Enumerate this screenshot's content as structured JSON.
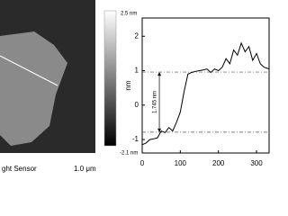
{
  "afm_image": {
    "sensor_label": "ght Sensor",
    "scale_bar": "1.0 μm",
    "colorbar": {
      "max_label": "2.5 nm",
      "min_label": "-2.1 nm"
    }
  },
  "chart_data": {
    "type": "line",
    "ylabel": "nm",
    "x": [
      0,
      10,
      20,
      30,
      40,
      50,
      60,
      70,
      80,
      90,
      100,
      110,
      120,
      130,
      140,
      150,
      160,
      170,
      180,
      190,
      200,
      210,
      220,
      230,
      240,
      250,
      260,
      270,
      280,
      290,
      300,
      310,
      320,
      333
    ],
    "series": [
      {
        "color": "#000000",
        "values": [
          -1.15,
          -1.1,
          -1.0,
          -0.98,
          -0.95,
          -0.75,
          -0.8,
          -0.65,
          -0.75,
          -0.5,
          -0.2,
          0.4,
          0.9,
          0.95,
          0.98,
          1.0,
          1.02,
          1.05,
          0.95,
          1.05,
          1.0,
          1.1,
          1.35,
          1.2,
          1.6,
          1.45,
          1.8,
          1.55,
          1.7,
          1.3,
          1.5,
          1.2,
          1.1,
          1.05
        ]
      }
    ],
    "xlim": [
      0,
      333
    ],
    "ylim": [
      -1.39,
      2.53
    ],
    "xticks": [
      0,
      100,
      200,
      300
    ],
    "yticks": [
      -1,
      0,
      1,
      2
    ],
    "hlines": [
      0.96,
      -0.785
    ],
    "annotation": {
      "text": "1.745 nm",
      "x": 45
    }
  }
}
